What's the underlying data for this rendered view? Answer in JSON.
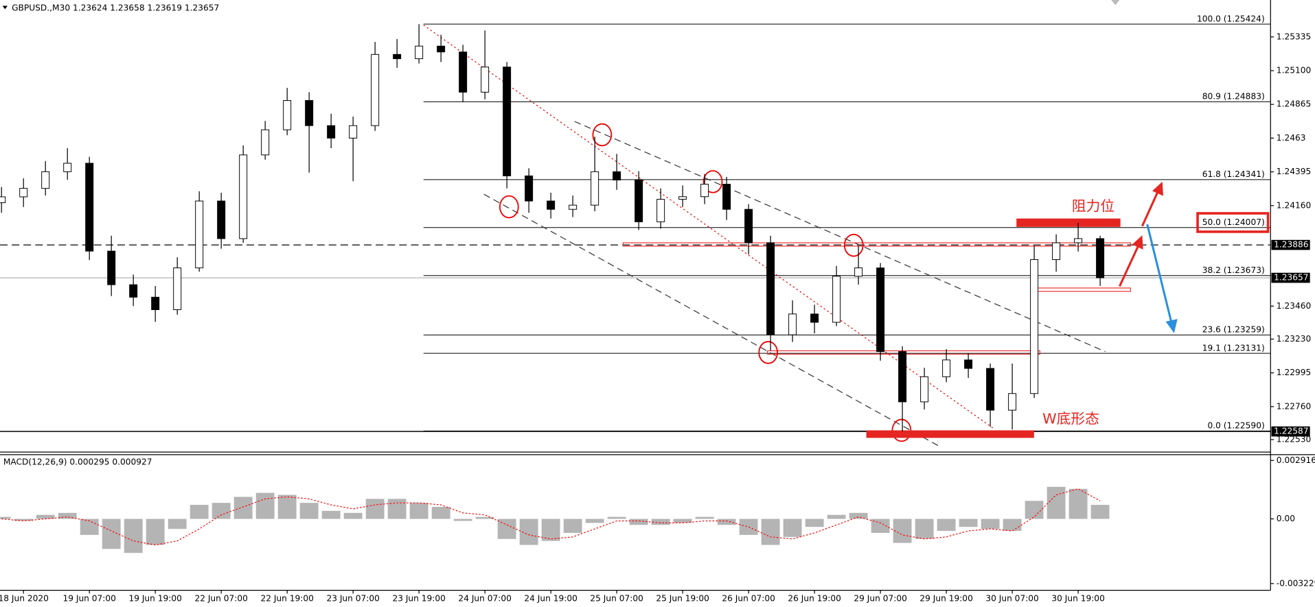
{
  "chart_data": [
    {
      "type": "candlestick",
      "title": "GBPUSD.,M30  1.23624 1.23658 1.23619 1.23657",
      "up_color": "#ffffff",
      "down_color": "#000000",
      "ylim": [
        1.22443,
        1.25592
      ],
      "yticks": [
        1.25335,
        {
          "value": 1.251,
          "label": "1.25100"
        },
        1.24865,
        1.2463,
        1.24395,
        {
          "value": 1.2416,
          "label": "1.24160"
        },
        {
          "value": 1.2346,
          "label": "1.23460"
        },
        {
          "value": 1.2323,
          "label": "1.23230"
        },
        1.22995,
        {
          "value": 1.2276,
          "label": "1.22760"
        },
        {
          "value": 1.2253,
          "label": "1.22530"
        }
      ],
      "open": [
        1.2418,
        1.24221,
        1.2428,
        1.24396,
        1.24455,
        1.23843,
        1.23609,
        1.23522,
        1.23435,
        1.23726,
        1.24192,
        1.2393,
        1.24513,
        1.24688,
        1.24892,
        1.24717,
        1.2463,
        1.24717,
        1.25213,
        1.25183,
        1.25271,
        1.2523,
        1.2495,
        1.25125,
        1.24367,
        1.24192,
        1.24134,
        1.24163,
        1.24396,
        1.24338,
        1.24047,
        1.24204,
        1.24222,
        1.24309,
        1.24134,
        1.23901,
        1.2326,
        1.23405,
        1.23347,
        1.23668,
        1.23726,
        1.23143,
        1.22793,
        1.22968,
        1.23085,
        1.23026,
        1.22735,
        1.22851,
        1.23784,
        1.23901,
        1.2393
      ],
      "high": [
        1.2429,
        1.2435,
        1.2447,
        1.2456,
        1.245,
        1.2395,
        1.2368,
        1.236,
        1.238,
        1.2426,
        1.2425,
        1.2458,
        1.2475,
        1.2498,
        1.2495,
        1.248,
        1.2478,
        1.253,
        1.2532,
        1.25424,
        1.2535,
        1.2528,
        1.2538,
        1.2516,
        1.2442,
        1.2425,
        1.2423,
        1.2464,
        1.2452,
        1.244,
        1.2428,
        1.243,
        1.2438,
        1.2436,
        1.2417,
        1.2395,
        1.235,
        1.2347,
        1.2374,
        1.2388,
        1.2376,
        1.2318,
        1.2303,
        1.2316,
        1.2313,
        1.2306,
        1.2306,
        1.2388,
        1.2396,
        1.2404,
        1.2395
      ],
      "low": [
        1.2411,
        1.2415,
        1.2423,
        1.2434,
        1.2378,
        1.2353,
        1.2346,
        1.2335,
        1.234,
        1.237,
        1.2386,
        1.239,
        1.2448,
        1.2465,
        1.2439,
        1.2456,
        1.2433,
        1.2468,
        1.2512,
        1.2515,
        1.2516,
        1.2488,
        1.249,
        1.2428,
        1.2411,
        1.2407,
        1.2408,
        1.2412,
        1.2427,
        1.2399,
        1.24,
        1.2415,
        1.2417,
        1.2406,
        1.2382,
        1.2315,
        1.2321,
        1.2327,
        1.2332,
        1.2361,
        1.2308,
        1.22587,
        1.2274,
        1.2293,
        1.2296,
        1.2262,
        1.226,
        1.2282,
        1.237,
        1.2384,
        1.236
      ],
      "close": [
        1.24221,
        1.2428,
        1.24396,
        1.24455,
        1.23843,
        1.23609,
        1.23522,
        1.23435,
        1.23726,
        1.24192,
        1.2393,
        1.24513,
        1.24688,
        1.24892,
        1.24717,
        1.2463,
        1.24717,
        1.25213,
        1.25183,
        1.25271,
        1.2523,
        1.2495,
        1.25125,
        1.24367,
        1.24192,
        1.24134,
        1.24163,
        1.24396,
        1.24338,
        1.24047,
        1.24204,
        1.24222,
        1.24309,
        1.24134,
        1.23901,
        1.2326,
        1.23405,
        1.23347,
        1.23668,
        1.23726,
        1.23143,
        1.22793,
        1.22968,
        1.23085,
        1.23026,
        1.22735,
        1.22851,
        1.23784,
        1.23901,
        1.2393,
        1.23657
      ],
      "fib_levels": [
        {
          "value": 1.25424,
          "label": "100.0 (1.25424)"
        },
        {
          "value": 1.24883,
          "label": "80.9 (1.24883)"
        },
        {
          "value": 1.24341,
          "label": "61.8 (1.24341)"
        },
        {
          "value": 1.24007,
          "label": "50.0 (1.24007)",
          "highlight": true
        },
        {
          "value": 1.23673,
          "label": "38.2 (1.23673)"
        },
        {
          "value": 1.23259,
          "label": "23.6 (1.23259)"
        },
        {
          "value": 1.23131,
          "label": "19.1 (1.23131)"
        },
        {
          "value": 1.2259,
          "label": "0.0 (1.22590)"
        }
      ],
      "price_labels": [
        {
          "value": 1.23886,
          "style": "dashed"
        },
        {
          "value": 1.23657,
          "style": "current"
        },
        {
          "value": 1.22587,
          "style": "solid"
        }
      ],
      "annotations": [
        "阻力位",
        "W底形态"
      ]
    },
    {
      "type": "macd",
      "title": "MACD(12,26,9) 0.000295 0.000927",
      "ylim": [
        -0.003563,
        0.003125
      ],
      "yticks": [
        0.002916,
        {
          "value": 0,
          "label": "0.00"
        },
        -0.003229
      ],
      "histogram": {
        "color": "#b4b4b4",
        "values": [
          0.0001,
          -0.0001,
          0.0002,
          0.0003,
          -0.0008,
          -0.0015,
          -0.0017,
          -0.0013,
          -0.0005,
          0.0007,
          0.0008,
          0.0011,
          0.0013,
          0.0012,
          0.0008,
          0.0004,
          0.0003,
          0.001,
          0.001,
          0.0008,
          0.0006,
          -0.0001,
          0.0001,
          -0.001,
          -0.0013,
          -0.0011,
          -0.0007,
          -0.0002,
          0.0001,
          -0.0003,
          -0.0003,
          -0.0002,
          0.0001,
          -0.0003,
          -0.0008,
          -0.0013,
          -0.0009,
          -0.0004,
          0.0002,
          0.0003,
          -0.0007,
          -0.0012,
          -0.001,
          -0.0006,
          -0.0004,
          -0.0005,
          -0.0006,
          0.0009,
          0.0016,
          0.0015,
          0.0007
        ]
      },
      "signal": {
        "color": "#ff0000",
        "values": [
          0,
          -0.0001,
          0,
          0.0001,
          -0.0001,
          -0.0006,
          -0.0011,
          -0.0013,
          -0.0011,
          -0.0005,
          0.0002,
          0.0006,
          0.001,
          0.0011,
          0.001,
          0.0007,
          0.0005,
          0.0007,
          0.0008,
          0.0008,
          0.0007,
          0.0003,
          0.0002,
          -0.0003,
          -0.0008,
          -0.001,
          -0.0009,
          -0.0005,
          -0.0001,
          -0.0001,
          -0.0002,
          -0.0002,
          -0.0001,
          -0.0001,
          -0.0004,
          -0.0009,
          -0.001,
          -0.0007,
          -0.0003,
          0.0001,
          -0.0002,
          -0.0008,
          -0.001,
          -0.0009,
          -0.0006,
          -0.0005,
          -0.0006,
          0.0001,
          0.0012,
          0.0015,
          0.0009
        ]
      },
      "xtick_labels": [
        "18 Jun 2020",
        "19 Jun 07:00",
        "19 Jun 19:00",
        "22 Jun 07:00",
        "22 Jun 19:00",
        "23 Jun 07:00",
        "23 Jun 19:00",
        "24 Jun 07:00",
        "24 Jun 19:00",
        "25 Jun 07:00",
        "25 Jun 19:00",
        "26 Jun 07:00",
        "26 Jun 19:00",
        "29 Jun 07:00",
        "29 Jun 19:00",
        "30 Jun 07:00",
        "30 Jun 19:00"
      ]
    }
  ]
}
